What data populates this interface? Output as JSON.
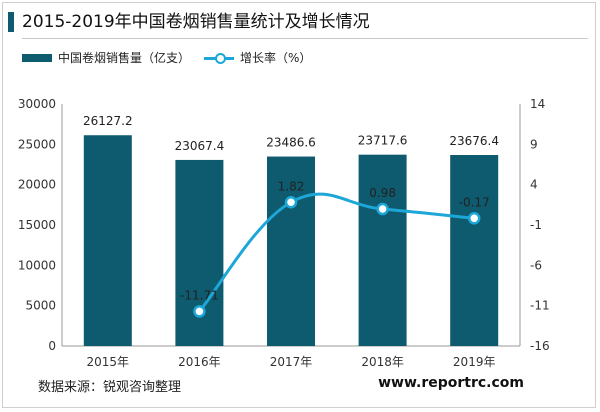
{
  "title": "2015-2019年中国卷烟销售量统计及增长情况",
  "colors": {
    "bar": "#0e5a6e",
    "line": "#1ca7d8",
    "title_accent": "#0e5a6e"
  },
  "footer": {
    "source": "数据来源：锐观咨询整理",
    "url": "www.reportrc.com"
  },
  "chart_data": {
    "type": "bar",
    "title": "2015-2019年中国卷烟销售量统计及增长情况",
    "categories": [
      "2015年",
      "2016年",
      "2017年",
      "2018年",
      "2019年"
    ],
    "series": [
      {
        "name": "中国卷烟销售量（亿支）",
        "type": "bar",
        "axis": "left",
        "values": [
          26127.2,
          23067.4,
          23486.6,
          23717.6,
          23676.4
        ],
        "labels": [
          "26127.2",
          "23067.4",
          "23486.6",
          "23717.6",
          "23676.4"
        ]
      },
      {
        "name": "增长率（%）",
        "type": "line",
        "axis": "right",
        "values": [
          null,
          -11.71,
          1.82,
          0.98,
          -0.17
        ],
        "labels": [
          "",
          "-11.71",
          "1.82",
          "0.98",
          "-0.17"
        ]
      }
    ],
    "y_left": {
      "min": 0,
      "max": 30000,
      "ticks": [
        0,
        5000,
        10000,
        15000,
        20000,
        25000,
        30000
      ]
    },
    "y_right": {
      "min": -16,
      "max": 14,
      "ticks": [
        -16,
        -11,
        -6,
        -1,
        4,
        9,
        14
      ]
    },
    "legend_position": "top-left",
    "grid": false
  }
}
